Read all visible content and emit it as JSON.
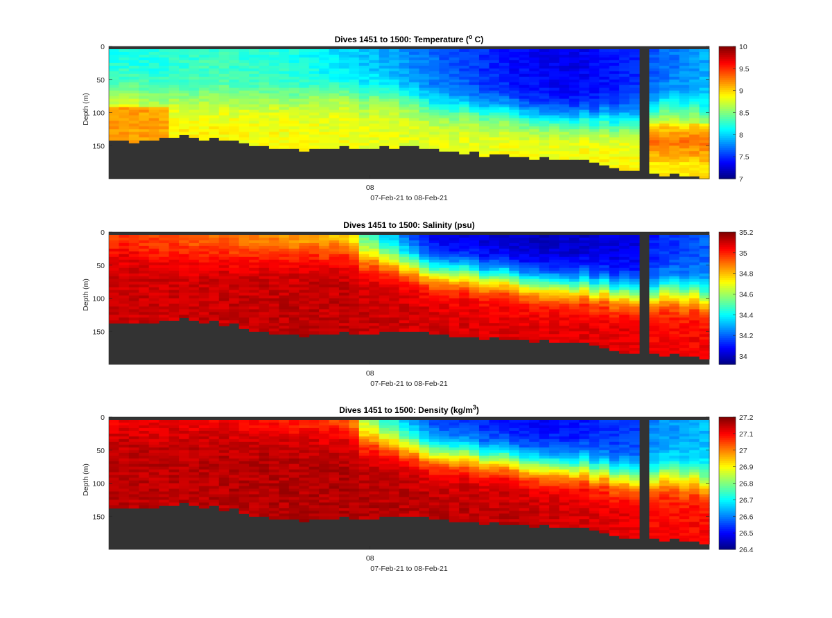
{
  "chart_data": [
    {
      "type": "heatmap",
      "title_prefix": "Dives 1451 to 1500: Temperature (",
      "title_sup": "o",
      "title_suffix": " C)",
      "ylabel": "Depth (m)",
      "xlabel": "07-Feb-21 to 08-Feb-21",
      "x_tick_labels": [
        "08"
      ],
      "y_tick_labels": [
        "0",
        "50",
        "100",
        "150"
      ],
      "y_ticks": [
        0,
        50,
        100,
        150
      ],
      "ylim": [
        0,
        200
      ],
      "y_reversed": true,
      "colorbar_ticks": [
        10,
        9.5,
        9,
        8.5,
        8,
        7.5,
        7
      ],
      "colorbar_tick_labels": [
        "10",
        "9.5",
        "9",
        "8.5",
        "8",
        "7.5",
        "7"
      ],
      "clim": [
        7,
        10
      ],
      "colormap": "jet",
      "x_columns": 60,
      "surface": [
        {
          "x": 0,
          "v": 8.2
        },
        {
          "x": 5,
          "v": 8.2
        },
        {
          "x": 10,
          "v": 8.3
        },
        {
          "x": 18,
          "v": 8.2
        },
        {
          "x": 24,
          "v": 8.0
        },
        {
          "x": 32,
          "v": 7.7
        },
        {
          "x": 40,
          "v": 7.4
        },
        {
          "x": 46,
          "v": 7.3
        },
        {
          "x": 53,
          "v": 7.5
        },
        {
          "x": 54,
          "v": 7.6
        },
        {
          "x": 60,
          "v": 7.9
        }
      ],
      "thermocline_depth": [
        {
          "x": 0,
          "v": 75
        },
        {
          "x": 10,
          "v": 80
        },
        {
          "x": 20,
          "v": 75
        },
        {
          "x": 28,
          "v": 72
        },
        {
          "x": 34,
          "v": 92
        },
        {
          "x": 40,
          "v": 100
        },
        {
          "x": 47,
          "v": 110
        },
        {
          "x": 53,
          "v": 115
        },
        {
          "x": 54,
          "v": 95
        },
        {
          "x": 60,
          "v": 100
        }
      ],
      "deep": [
        {
          "x": 0,
          "v": 9.0
        },
        {
          "x": 10,
          "v": 8.9
        },
        {
          "x": 20,
          "v": 8.85
        },
        {
          "x": 30,
          "v": 8.8
        },
        {
          "x": 40,
          "v": 8.85
        },
        {
          "x": 47,
          "v": 8.9
        },
        {
          "x": 53,
          "v": 8.9
        },
        {
          "x": 54,
          "v": 8.9
        },
        {
          "x": 60,
          "v": 8.95
        }
      ],
      "bottom_anomaly": {
        "x_start": 0,
        "x_end": 6,
        "v": 9.15
      },
      "patch_anomaly": {
        "x_start": 54,
        "x_end": 60,
        "depth_start": 115,
        "depth_end": 175,
        "v": 9.3
      },
      "seafloor_depth": [
        {
          "x": 0,
          "v": 145
        },
        {
          "x": 6,
          "v": 138
        },
        {
          "x": 10,
          "v": 137
        },
        {
          "x": 15,
          "v": 150
        },
        {
          "x": 20,
          "v": 155
        },
        {
          "x": 30,
          "v": 153
        },
        {
          "x": 40,
          "v": 165
        },
        {
          "x": 48,
          "v": 175
        },
        {
          "x": 53,
          "v": 188
        },
        {
          "x": 54,
          "v": 190
        },
        {
          "x": 60,
          "v": 198
        }
      ]
    },
    {
      "type": "heatmap",
      "title_prefix": "Dives 1451 to 1500: Salinity (psu)",
      "title_sup": "",
      "title_suffix": "",
      "ylabel": "Depth (m)",
      "xlabel": "07-Feb-21 to 08-Feb-21",
      "x_tick_labels": [
        "08"
      ],
      "y_tick_labels": [
        "0",
        "50",
        "100",
        "150"
      ],
      "y_ticks": [
        0,
        50,
        100,
        150
      ],
      "ylim": [
        0,
        200
      ],
      "y_reversed": true,
      "colorbar_ticks": [
        35.2,
        35,
        34.8,
        34.6,
        34.4,
        34.2,
        34
      ],
      "colorbar_tick_labels": [
        "35.2",
        "35",
        "34.8",
        "34.6",
        "34.4",
        "34.2",
        "34"
      ],
      "clim": [
        33.92,
        35.2
      ],
      "colormap": "jet",
      "x_columns": 60,
      "surface": [
        {
          "x": 0,
          "v": 34.95
        },
        {
          "x": 10,
          "v": 34.9
        },
        {
          "x": 18,
          "v": 34.8
        },
        {
          "x": 24,
          "v": 34.7
        },
        {
          "x": 26,
          "v": 34.4
        },
        {
          "x": 32,
          "v": 34.05
        },
        {
          "x": 40,
          "v": 34.0
        },
        {
          "x": 46,
          "v": 34.0
        },
        {
          "x": 53,
          "v": 34.05
        },
        {
          "x": 54,
          "v": 34.1
        },
        {
          "x": 60,
          "v": 34.2
        }
      ],
      "thermocline_depth": [
        {
          "x": 0,
          "v": 25
        },
        {
          "x": 10,
          "v": 35
        },
        {
          "x": 18,
          "v": 30
        },
        {
          "x": 24,
          "v": 30
        },
        {
          "x": 34,
          "v": 60
        },
        {
          "x": 40,
          "v": 70
        },
        {
          "x": 47,
          "v": 80
        },
        {
          "x": 53,
          "v": 95
        },
        {
          "x": 54,
          "v": 92
        },
        {
          "x": 60,
          "v": 95
        }
      ],
      "deep": [
        {
          "x": 0,
          "v": 35.1
        },
        {
          "x": 20,
          "v": 35.12
        },
        {
          "x": 40,
          "v": 35.08
        },
        {
          "x": 53,
          "v": 35.08
        },
        {
          "x": 54,
          "v": 35.05
        },
        {
          "x": 60,
          "v": 35.05
        }
      ],
      "bottom_anomaly": null,
      "patch_anomaly": null,
      "seafloor_depth": [
        {
          "x": 0,
          "v": 140
        },
        {
          "x": 6,
          "v": 133
        },
        {
          "x": 10,
          "v": 133
        },
        {
          "x": 15,
          "v": 150
        },
        {
          "x": 20,
          "v": 155
        },
        {
          "x": 30,
          "v": 152
        },
        {
          "x": 40,
          "v": 162
        },
        {
          "x": 48,
          "v": 170
        },
        {
          "x": 53,
          "v": 185
        },
        {
          "x": 54,
          "v": 183
        },
        {
          "x": 60,
          "v": 190
        }
      ]
    },
    {
      "type": "heatmap",
      "title_prefix": "Dives 1451 to 1500: Density (kg/m",
      "title_sup": "3",
      "title_suffix": ")",
      "ylabel": "Depth (m)",
      "xlabel": "07-Feb-21 to 08-Feb-21",
      "x_tick_labels": [
        "08"
      ],
      "y_tick_labels": [
        "0",
        "50",
        "100",
        "150"
      ],
      "y_ticks": [
        0,
        50,
        100,
        150
      ],
      "ylim": [
        0,
        200
      ],
      "y_reversed": true,
      "colorbar_ticks": [
        27.2,
        27.1,
        27,
        26.9,
        26.8,
        26.7,
        26.6,
        26.5,
        26.4
      ],
      "colorbar_tick_labels": [
        "27.2",
        "27.1",
        "27",
        "26.9",
        "26.8",
        "26.7",
        "26.6",
        "26.5",
        "26.4"
      ],
      "clim": [
        26.4,
        27.2
      ],
      "colormap": "jet",
      "x_columns": 60,
      "surface": [
        {
          "x": 0,
          "v": 27.1
        },
        {
          "x": 10,
          "v": 27.1
        },
        {
          "x": 18,
          "v": 27.05
        },
        {
          "x": 24,
          "v": 27.0
        },
        {
          "x": 26,
          "v": 26.75
        },
        {
          "x": 32,
          "v": 26.55
        },
        {
          "x": 40,
          "v": 26.5
        },
        {
          "x": 46,
          "v": 26.5
        },
        {
          "x": 53,
          "v": 26.55
        },
        {
          "x": 54,
          "v": 26.6
        },
        {
          "x": 60,
          "v": 26.65
        }
      ],
      "thermocline_depth": [
        {
          "x": 0,
          "v": 20
        },
        {
          "x": 18,
          "v": 20
        },
        {
          "x": 24,
          "v": 25
        },
        {
          "x": 34,
          "v": 55
        },
        {
          "x": 40,
          "v": 65
        },
        {
          "x": 47,
          "v": 75
        },
        {
          "x": 53,
          "v": 95
        },
        {
          "x": 54,
          "v": 90
        },
        {
          "x": 60,
          "v": 95
        }
      ],
      "deep": [
        {
          "x": 0,
          "v": 27.15
        },
        {
          "x": 20,
          "v": 27.16
        },
        {
          "x": 40,
          "v": 27.15
        },
        {
          "x": 53,
          "v": 27.12
        },
        {
          "x": 54,
          "v": 27.1
        },
        {
          "x": 60,
          "v": 27.1
        }
      ],
      "bottom_anomaly": null,
      "patch_anomaly": null,
      "seafloor_depth": [
        {
          "x": 0,
          "v": 140
        },
        {
          "x": 6,
          "v": 133
        },
        {
          "x": 10,
          "v": 133
        },
        {
          "x": 15,
          "v": 150
        },
        {
          "x": 20,
          "v": 155
        },
        {
          "x": 30,
          "v": 152
        },
        {
          "x": 40,
          "v": 162
        },
        {
          "x": 48,
          "v": 170
        },
        {
          "x": 53,
          "v": 185
        },
        {
          "x": 54,
          "v": 183
        },
        {
          "x": 60,
          "v": 190
        }
      ]
    }
  ],
  "colors": {
    "no_data": "#333333",
    "axis": "#262626",
    "background": "#ffffff"
  }
}
